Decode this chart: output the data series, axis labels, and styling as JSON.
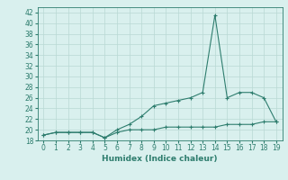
{
  "xlabel": "Humidex (Indice chaleur)",
  "x": [
    0,
    1,
    2,
    3,
    4,
    5,
    6,
    7,
    8,
    9,
    10,
    11,
    12,
    13,
    14,
    15,
    16,
    17,
    18,
    19
  ],
  "y_upper": [
    19,
    19.5,
    19.5,
    19.5,
    19.5,
    18.5,
    20,
    21,
    22.5,
    24.5,
    25,
    25.5,
    26,
    27,
    41.5,
    26,
    27,
    27,
    26,
    21.5
  ],
  "y_lower": [
    19,
    19.5,
    19.5,
    19.5,
    19.5,
    18.5,
    19.5,
    20,
    20,
    20,
    20.5,
    20.5,
    20.5,
    20.5,
    20.5,
    21,
    21,
    21,
    21.5,
    21.5
  ],
  "line_color": "#2e7d6e",
  "marker": "+",
  "bg_color": "#d9f0ee",
  "grid_color": "#b8d8d4",
  "ylim": [
    18,
    43
  ],
  "xlim": [
    -0.5,
    19.5
  ],
  "yticks": [
    18,
    20,
    22,
    24,
    26,
    28,
    30,
    32,
    34,
    36,
    38,
    40,
    42
  ],
  "xticks": [
    0,
    1,
    2,
    3,
    4,
    5,
    6,
    7,
    8,
    9,
    10,
    11,
    12,
    13,
    14,
    15,
    16,
    17,
    18,
    19
  ],
  "tick_fontsize": 5.5,
  "xlabel_fontsize": 6.5
}
